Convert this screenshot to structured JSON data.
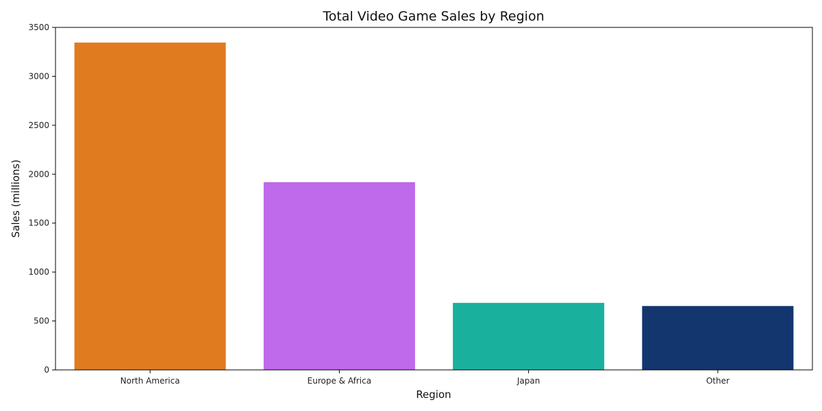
{
  "chart_data": {
    "type": "bar",
    "title": "Total Video Game Sales by Region",
    "xlabel": "Region",
    "ylabel": "Sales (millions)",
    "categories": [
      "North America",
      "Europe & Africa",
      "Japan",
      "Other"
    ],
    "values": [
      3345,
      1918,
      685,
      653
    ],
    "colors": [
      "#e07b20",
      "#bf69eb",
      "#19b19e",
      "#13366f"
    ],
    "ylim": [
      0,
      3500
    ],
    "yticks": [
      0,
      500,
      1000,
      1500,
      2000,
      2500,
      3000,
      3500
    ],
    "grid": false,
    "legend": "none"
  }
}
